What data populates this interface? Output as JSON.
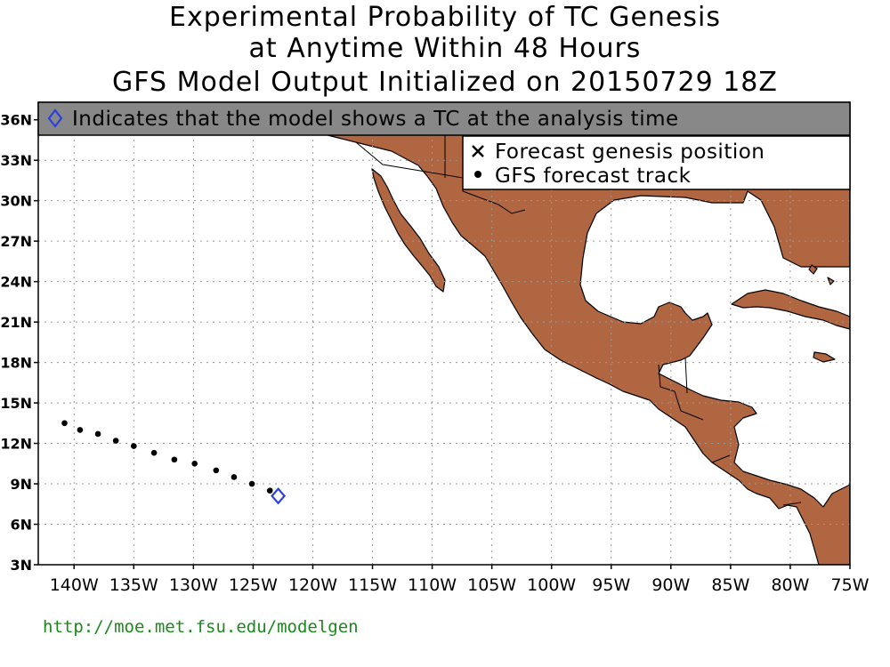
{
  "title": {
    "line1": "Experimental Probability of TC Genesis",
    "line2": "at Anytime Within 48 Hours",
    "line3": "GFS Model Output Initialized on 20150729 18Z"
  },
  "banner": {
    "text": "Indicates that the model shows a TC at the analysis time"
  },
  "legend": {
    "genesis_label": "Forecast genesis position",
    "track_label": "GFS forecast track"
  },
  "axes": {
    "lat_ticks": [
      "36N",
      "33N",
      "30N",
      "27N",
      "24N",
      "21N",
      "18N",
      "15N",
      "12N",
      "9N",
      "6N",
      "3N"
    ],
    "lon_ticks": [
      "140W",
      "135W",
      "130W",
      "125W",
      "120W",
      "115W",
      "110W",
      "105W",
      "100W",
      "95W",
      "90W",
      "85W",
      "80W",
      "75W"
    ]
  },
  "colors": {
    "land": "#b06640",
    "banner": "#888888",
    "marker": "#2a3fe0",
    "url": "#1a8a1a"
  },
  "track_points": [
    {
      "lon": -140.8,
      "lat": 13.5
    },
    {
      "lon": -139.5,
      "lat": 13.0
    },
    {
      "lon": -138.0,
      "lat": 12.7
    },
    {
      "lon": -136.5,
      "lat": 12.2
    },
    {
      "lon": -135.0,
      "lat": 11.8
    },
    {
      "lon": -133.3,
      "lat": 11.3
    },
    {
      "lon": -131.6,
      "lat": 10.8
    },
    {
      "lon": -129.9,
      "lat": 10.5
    },
    {
      "lon": -128.1,
      "lat": 10.0
    },
    {
      "lon": -126.6,
      "lat": 9.5
    },
    {
      "lon": -125.1,
      "lat": 9.0
    },
    {
      "lon": -123.6,
      "lat": 8.5
    }
  ],
  "analysis_marker": {
    "lon": -122.9,
    "lat": 8.1
  },
  "footer_url": "http://moe.met.fsu.edu/modelgen"
}
